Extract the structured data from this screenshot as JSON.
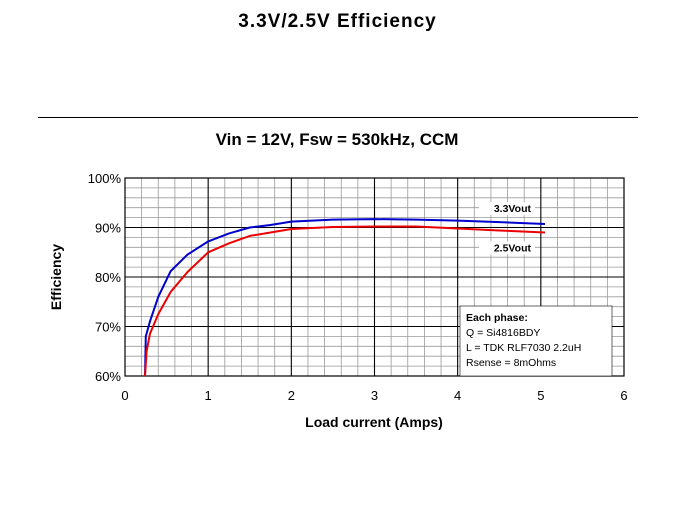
{
  "slide": {
    "title": "3.3V/2.5V Efficiency"
  },
  "chart_data": {
    "type": "line",
    "title": "Vin = 12V, Fsw = 530kHz, CCM",
    "xlabel": "Load current (Amps)",
    "ylabel": "Efficiency",
    "xlim": [
      0,
      6
    ],
    "ylim": [
      60,
      100
    ],
    "x_ticks": [
      "0",
      "1",
      "2",
      "3",
      "4",
      "5",
      "6"
    ],
    "y_ticks": [
      "60%",
      "70%",
      "80%",
      "90%",
      "100%"
    ],
    "grid": true,
    "series": [
      {
        "name": "3.3Vout",
        "color": "#0000cc",
        "x": [
          0.24,
          0.25,
          0.3,
          0.4,
          0.55,
          0.75,
          1.0,
          1.25,
          1.5,
          1.75,
          2.0,
          2.5,
          3.0,
          3.5,
          4.0,
          4.5,
          5.05
        ],
        "y": [
          60,
          68,
          71,
          76,
          81.2,
          84.5,
          87.2,
          88.8,
          90.0,
          90.5,
          91.2,
          91.6,
          91.7,
          91.6,
          91.4,
          91.1,
          90.7
        ]
      },
      {
        "name": "2.5Vout",
        "color": "#ee0000",
        "x": [
          0.24,
          0.26,
          0.3,
          0.4,
          0.55,
          0.75,
          1.0,
          1.25,
          1.5,
          1.75,
          2.0,
          2.5,
          3.0,
          3.5,
          4.0,
          4.5,
          5.05
        ],
        "y": [
          60,
          65,
          68.5,
          72.5,
          77,
          81,
          85.0,
          86.8,
          88.3,
          89.0,
          89.7,
          90.1,
          90.2,
          90.2,
          89.8,
          89.4,
          89.0
        ]
      }
    ],
    "annotation": [
      "Each phase:",
      "Q = Si4816BDY",
      "L = TDK RLF7030 2.2uH",
      "Rsense = 8mOhms"
    ]
  }
}
